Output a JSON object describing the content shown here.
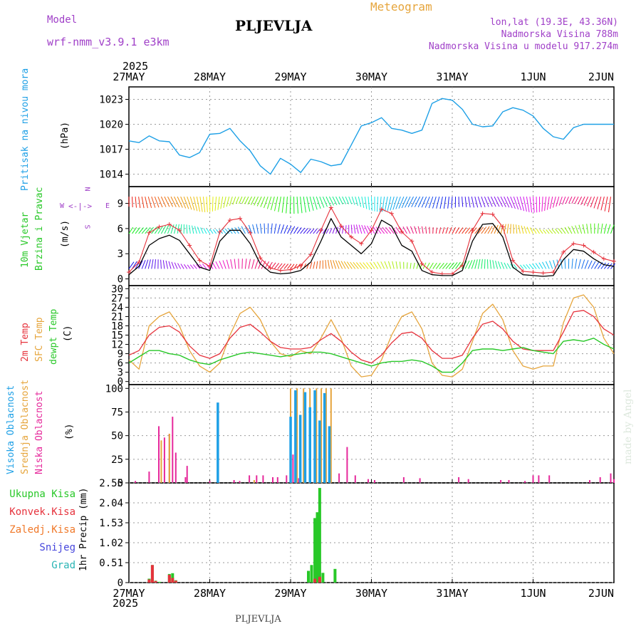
{
  "header": {
    "model_label": "Model",
    "model_name": "wrf-nmm_v3.9.1  e3km",
    "title": "PLJEVLJA",
    "meteogram_label": "Meteogram",
    "lonlat": "lon,lat (19.3E, 43.36N)",
    "altitude": "Nadmorska Visina 788m",
    "model_altitude": "Nadmorska Visina u modelu 917.274m",
    "year_top": "2025",
    "year_bottom": "2025",
    "footer_station": "PLJEVLJA",
    "credit": "made by Angel"
  },
  "colors": {
    "pressure": "#1ea0e6",
    "wind": "#000000",
    "gust": "#e6323c",
    "temp2m": "#e6323c",
    "sfc": "#e6a53c",
    "dewpt": "#28c828",
    "high_cloud": "#1ea0e6",
    "mid_cloud": "#e6a53c",
    "low_cloud": "#e6289b",
    "precip_total": "#28c828",
    "precip_conv": "#e6323c",
    "precip_frz": "#f07828",
    "snow": "#4646dc",
    "hail": "#28b4b4",
    "purple": "#a040c8"
  },
  "chart_data": [
    {
      "type": "line",
      "panel": "pressure",
      "title": "Pritisak na nivou mora",
      "ylabel": "(hPa)",
      "categories": [
        "27MAY",
        "28MAY",
        "29MAY",
        "30MAY",
        "31MAY",
        "1JUN",
        "2JUN"
      ],
      "ylim": [
        1012.5,
        1024.5
      ],
      "yticks": [
        1014,
        1017,
        1020,
        1023
      ],
      "x": [
        0,
        0.125,
        0.25,
        0.375,
        0.5,
        0.625,
        0.75,
        0.875,
        1,
        1.125,
        1.25,
        1.375,
        1.5,
        1.625,
        1.75,
        1.875,
        2,
        2.125,
        2.25,
        2.375,
        2.5,
        2.625,
        2.75,
        2.875,
        3,
        3.125,
        3.25,
        3.375,
        3.5,
        3.625,
        3.75,
        3.875,
        4,
        4.125,
        4.25,
        4.375,
        4.5,
        4.625,
        4.75,
        4.875,
        5,
        5.125,
        5.25,
        5.375,
        5.5,
        5.625,
        5.75,
        5.875,
        6
      ],
      "values": [
        1018.0,
        1017.8,
        1018.6,
        1018.0,
        1017.9,
        1016.3,
        1016.0,
        1016.6,
        1018.8,
        1018.9,
        1019.5,
        1018.0,
        1016.8,
        1015.0,
        1014.0,
        1015.9,
        1015.2,
        1014.2,
        1015.8,
        1015.5,
        1015.0,
        1015.2,
        1017.5,
        1019.8,
        1020.2,
        1020.8,
        1019.5,
        1019.3,
        1018.9,
        1019.3,
        1022.5,
        1023.1,
        1022.9,
        1021.8,
        1020.0,
        1019.7,
        1019.8,
        1021.5,
        1022.0,
        1021.7,
        1021.0,
        1019.5,
        1018.5,
        1018.2,
        1019.6,
        1020.0,
        1020.0,
        1020.0,
        1020.0
      ]
    },
    {
      "type": "line",
      "panel": "wind",
      "title": "10m Vjetar",
      "subtitle": "Brzina i Pravac",
      "ylabel": "(m/s)",
      "compass": {
        "n": "N",
        "s": "S",
        "e": "E",
        "w": "W"
      },
      "ylim": [
        -0.8,
        11.0
      ],
      "yticks": [
        0,
        3,
        6,
        9
      ],
      "x": [
        0,
        0.125,
        0.25,
        0.375,
        0.5,
        0.625,
        0.75,
        0.875,
        1,
        1.125,
        1.25,
        1.375,
        1.5,
        1.625,
        1.75,
        1.875,
        2,
        2.125,
        2.25,
        2.375,
        2.5,
        2.625,
        2.75,
        2.875,
        3,
        3.125,
        3.25,
        3.375,
        3.5,
        3.625,
        3.75,
        3.875,
        4,
        4.125,
        4.25,
        4.375,
        4.5,
        4.625,
        4.75,
        4.875,
        5,
        5.125,
        5.25,
        5.375,
        5.5,
        5.625,
        5.75,
        5.875,
        6
      ],
      "series": [
        {
          "name": "speed",
          "values": [
            0.5,
            1.5,
            4.0,
            4.8,
            5.2,
            4.6,
            3.0,
            1.4,
            1.0,
            4.5,
            5.8,
            5.8,
            4.2,
            1.8,
            0.8,
            0.6,
            0.7,
            1.0,
            2.0,
            4.5,
            7.2,
            5.0,
            4.0,
            3.0,
            4.2,
            7.0,
            6.3,
            4.0,
            3.3,
            1.0,
            0.5,
            0.4,
            0.4,
            1.0,
            4.5,
            6.5,
            6.6,
            5.0,
            1.4,
            0.5,
            0.4,
            0.3,
            0.4,
            2.3,
            3.5,
            3.3,
            2.4,
            1.7,
            1.5
          ]
        },
        {
          "name": "gust",
          "values": [
            0.8,
            2.0,
            5.5,
            6.2,
            6.5,
            5.8,
            4.0,
            2.2,
            1.5,
            5.6,
            7.0,
            7.2,
            5.5,
            2.5,
            1.3,
            1.0,
            1.1,
            1.6,
            2.9,
            5.8,
            8.5,
            6.3,
            5.0,
            4.2,
            5.8,
            8.3,
            7.8,
            5.6,
            4.5,
            1.8,
            0.8,
            0.6,
            0.6,
            1.6,
            5.8,
            7.8,
            7.7,
            6.2,
            2.2,
            0.9,
            0.8,
            0.7,
            0.8,
            3.2,
            4.2,
            4.0,
            3.2,
            2.4,
            2.1
          ]
        }
      ]
    },
    {
      "type": "line",
      "panel": "temperature",
      "labels": [
        "2m Temp",
        "SFC Temp",
        "dewpt Temp"
      ],
      "ylabel": "(C)",
      "ylim": [
        -1,
        31
      ],
      "yticks": [
        0,
        3,
        6,
        9,
        12,
        15,
        18,
        21,
        24,
        27,
        30
      ],
      "x": [
        0,
        0.125,
        0.25,
        0.375,
        0.5,
        0.625,
        0.75,
        0.875,
        1,
        1.125,
        1.25,
        1.375,
        1.5,
        1.625,
        1.75,
        1.875,
        2,
        2.125,
        2.25,
        2.375,
        2.5,
        2.625,
        2.75,
        2.875,
        3,
        3.125,
        3.25,
        3.375,
        3.5,
        3.625,
        3.75,
        3.875,
        4,
        4.125,
        4.25,
        4.375,
        4.5,
        4.625,
        4.75,
        4.875,
        5,
        5.125,
        5.25,
        5.375,
        5.5,
        5.625,
        5.75,
        5.875,
        6
      ],
      "series": [
        {
          "name": "2m Temp",
          "values": [
            8.5,
            10,
            15,
            17.5,
            18,
            16,
            11.5,
            8.5,
            7.5,
            9,
            14,
            17.5,
            18.5,
            16,
            13,
            11,
            10.5,
            10.5,
            11,
            13.5,
            15.5,
            13,
            9.5,
            7,
            6,
            8.5,
            12.5,
            15.5,
            16,
            14,
            10,
            7.5,
            7.5,
            8.5,
            14,
            18.5,
            19.5,
            17,
            13,
            10.5,
            10,
            10,
            10,
            16,
            22.5,
            23,
            21,
            17,
            15
          ]
        },
        {
          "name": "SFC Temp",
          "values": [
            7,
            4,
            18,
            21,
            22.5,
            18,
            10,
            5,
            3,
            6,
            15,
            22,
            24,
            20,
            13,
            9,
            8,
            10,
            9,
            14,
            20,
            14,
            5,
            1.5,
            2,
            7,
            15,
            21,
            22.5,
            17,
            6,
            2,
            1.5,
            4,
            13,
            22,
            25,
            20,
            10,
            5,
            4,
            5,
            5,
            19,
            27,
            28,
            24,
            14,
            9
          ]
        },
        {
          "name": "dewpt Temp",
          "values": [
            6,
            8,
            10,
            10,
            9,
            8.5,
            7,
            6,
            5.5,
            7,
            8,
            9,
            9.5,
            9,
            8.5,
            8,
            8.5,
            9,
            9.5,
            9.5,
            9,
            8,
            7,
            6,
            5,
            6,
            6.5,
            6.5,
            7,
            6.5,
            5,
            3,
            3,
            6,
            10,
            10.5,
            10.5,
            10,
            10.5,
            11,
            10,
            9.5,
            9,
            13,
            13.5,
            13,
            14,
            12,
            10.5
          ]
        }
      ]
    },
    {
      "type": "bar",
      "panel": "clouds",
      "labels": [
        "Visoka Oblacnost",
        "Srednja Oblacnost",
        "Niska Oblacnost"
      ],
      "ylabel": "(%)",
      "ylim": [
        0,
        104
      ],
      "yticks": [
        0,
        25,
        50,
        75,
        100
      ],
      "series": [
        {
          "name": "Niska Oblacnost",
          "points": [
            [
              0.08,
              2
            ],
            [
              0.25,
              12
            ],
            [
              0.37,
              60
            ],
            [
              0.44,
              48
            ],
            [
              0.5,
              52
            ],
            [
              0.54,
              70
            ],
            [
              0.58,
              32
            ],
            [
              0.7,
              6
            ],
            [
              0.72,
              18
            ],
            [
              1.0,
              2
            ],
            [
              1.3,
              3
            ],
            [
              1.37,
              2
            ],
            [
              1.49,
              8
            ],
            [
              1.58,
              8
            ],
            [
              1.66,
              8
            ],
            [
              1.78,
              6
            ],
            [
              1.84,
              6
            ],
            [
              1.95,
              8
            ],
            [
              2.03,
              30
            ],
            [
              2.1,
              5
            ],
            [
              2.6,
              10
            ],
            [
              2.7,
              38
            ],
            [
              2.8,
              8
            ],
            [
              2.96,
              4
            ],
            [
              3.04,
              3
            ],
            [
              3.4,
              6
            ],
            [
              3.6,
              5
            ],
            [
              4.08,
              6
            ],
            [
              4.2,
              4
            ],
            [
              4.6,
              3
            ],
            [
              4.7,
              3
            ],
            [
              4.9,
              2
            ],
            [
              5.0,
              8
            ],
            [
              5.07,
              8
            ],
            [
              5.2,
              8
            ],
            [
              5.7,
              3
            ],
            [
              5.83,
              6
            ],
            [
              5.96,
              10
            ],
            [
              6.0,
              4
            ]
          ]
        },
        {
          "name": "Srednja Oblacnost",
          "points": [
            [
              0.4,
              45
            ],
            [
              0.5,
              52
            ],
            [
              1.1,
              12
            ],
            [
              1.55,
              3
            ],
            [
              2.0,
              100
            ],
            [
              2.08,
              100
            ],
            [
              2.16,
              100
            ],
            [
              2.24,
              100
            ],
            [
              2.32,
              100
            ],
            [
              2.38,
              100
            ],
            [
              2.44,
              100
            ],
            [
              2.5,
              100
            ]
          ]
        },
        {
          "name": "Visoka Oblacnost",
          "points": [
            [
              1.1,
              85
            ],
            [
              2.0,
              70
            ],
            [
              2.06,
              98
            ],
            [
              2.12,
              72
            ],
            [
              2.18,
              96
            ],
            [
              2.24,
              80
            ],
            [
              2.3,
              98
            ],
            [
              2.36,
              66
            ],
            [
              2.42,
              95
            ],
            [
              2.48,
              60
            ]
          ]
        }
      ]
    },
    {
      "type": "bar",
      "panel": "precipitation",
      "labels": [
        "Ukupna Kisa",
        "Konvek.Kisa",
        "Zaledj.Kisa",
        "Snijeg",
        "Grad"
      ],
      "ylabel": "1hr Precip (mm)",
      "ylim": [
        0,
        2.55
      ],
      "yticks": [
        0,
        0.51,
        1.02,
        1.53,
        2.04,
        2.55
      ],
      "series": [
        {
          "name": "Ukupna Kisa",
          "points": [
            [
              0.25,
              0.1
            ],
            [
              0.29,
              0.45
            ],
            [
              0.33,
              0.05
            ],
            [
              0.38,
              0.02
            ],
            [
              0.5,
              0.22
            ],
            [
              0.54,
              0.24
            ],
            [
              0.58,
              0.06
            ],
            [
              2.22,
              0.3
            ],
            [
              2.26,
              0.45
            ],
            [
              2.3,
              1.65
            ],
            [
              2.33,
              1.8
            ],
            [
              2.36,
              2.42
            ],
            [
              2.4,
              0.25
            ],
            [
              2.55,
              0.35
            ]
          ]
        },
        {
          "name": "Konvek.Kisa",
          "points": [
            [
              0.25,
              0.08
            ],
            [
              0.29,
              0.45
            ],
            [
              0.33,
              0.04
            ],
            [
              0.5,
              0.2
            ],
            [
              0.54,
              0.12
            ],
            [
              0.58,
              0.05
            ],
            [
              2.3,
              0.1
            ],
            [
              2.36,
              0.15
            ]
          ]
        }
      ]
    }
  ]
}
